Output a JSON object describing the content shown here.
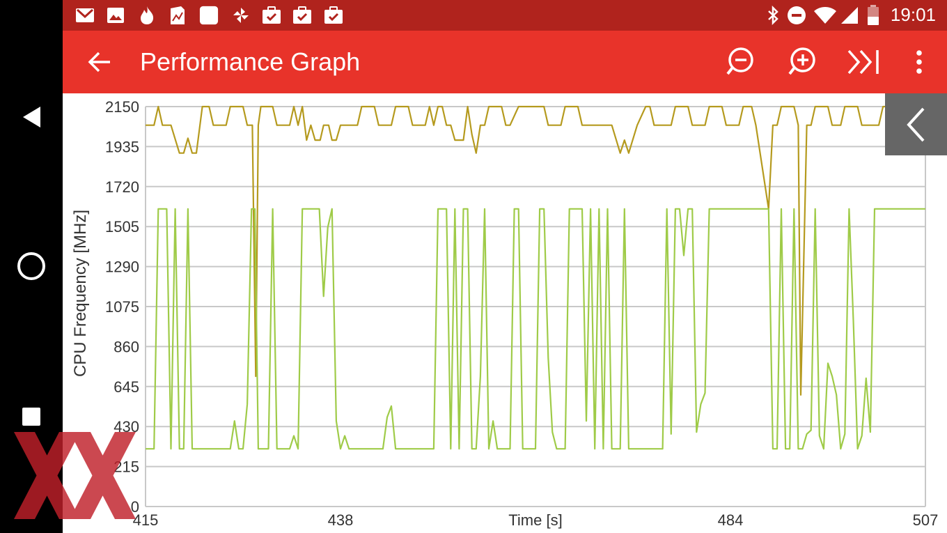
{
  "status_bar": {
    "time": "19:01",
    "left_icons": [
      "gmail-icon",
      "gallery-icon",
      "fire-icon",
      "document-icon",
      "square-app-icon",
      "pinwheel-icon",
      "task-icon",
      "task-icon",
      "task-icon"
    ],
    "right_icons": [
      "bluetooth-icon",
      "do-not-disturb-icon",
      "wifi-icon",
      "cell-signal-icon",
      "battery-icon"
    ]
  },
  "app_bar": {
    "title": "Performance Graph",
    "back_icon": "arrow-left-icon",
    "actions": [
      "zoom-out-icon",
      "zoom-in-icon",
      "jump-to-end-icon",
      "overflow-menu-icon"
    ]
  },
  "nav_bar": {
    "buttons": [
      "back-triangle-icon",
      "home-circle-icon",
      "recents-square-icon"
    ]
  },
  "colors": {
    "status_bar": "#b0231d",
    "app_bar": "#e8332a",
    "series_big": "#b59a1e",
    "series_little": "#9fcb48",
    "grid": "#c8c8c8",
    "watermark": "#c0202a"
  },
  "chart_data": {
    "type": "line",
    "xlabel": "Time [s]",
    "ylabel": "CPU Frequency [MHz]",
    "xlim": [
      415,
      507
    ],
    "ylim": [
      0,
      2150
    ],
    "x_ticks": [
      "415",
      "438",
      "Time [s]",
      "484",
      "507"
    ],
    "y_ticks": [
      "2150",
      "1935",
      "1720",
      "1505",
      "1290",
      "1075",
      "860",
      "645",
      "430",
      "215",
      "0"
    ],
    "grid": true,
    "series": [
      {
        "points": [
          [
            415,
            2050
          ],
          [
            416,
            2050
          ],
          [
            416.5,
            2150
          ],
          [
            417,
            2050
          ],
          [
            418,
            2050
          ],
          [
            419,
            1900
          ],
          [
            419.5,
            1900
          ],
          [
            420,
            1980
          ],
          [
            420.5,
            1900
          ],
          [
            421,
            1900
          ],
          [
            421.7,
            2150
          ],
          [
            422.5,
            2150
          ],
          [
            423,
            2050
          ],
          [
            424.5,
            2050
          ],
          [
            425,
            2150
          ],
          [
            426.5,
            2150
          ],
          [
            427,
            2050
          ],
          [
            427.6,
            2050
          ],
          [
            428,
            700
          ],
          [
            428.3,
            2050
          ],
          [
            428.6,
            2150
          ],
          [
            430,
            2150
          ],
          [
            430.5,
            2050
          ],
          [
            432,
            2050
          ],
          [
            432.5,
            2150
          ],
          [
            433,
            2050
          ],
          [
            433.5,
            2150
          ],
          [
            434,
            1970
          ],
          [
            434.5,
            2050
          ],
          [
            435,
            1970
          ],
          [
            435.6,
            1970
          ],
          [
            436,
            2050
          ],
          [
            436.6,
            2050
          ],
          [
            437,
            1970
          ],
          [
            437.5,
            1970
          ],
          [
            438,
            2050
          ],
          [
            440,
            2050
          ],
          [
            440.5,
            2150
          ],
          [
            442,
            2150
          ],
          [
            442.5,
            2050
          ],
          [
            444,
            2050
          ],
          [
            444.5,
            2150
          ],
          [
            446,
            2150
          ],
          [
            446.5,
            2050
          ],
          [
            448,
            2050
          ],
          [
            448.5,
            2150
          ],
          [
            449,
            2050
          ],
          [
            449.5,
            2150
          ],
          [
            450,
            2150
          ],
          [
            450.5,
            2050
          ],
          [
            451,
            2050
          ],
          [
            451.5,
            1970
          ],
          [
            452.5,
            1970
          ],
          [
            453,
            2150
          ],
          [
            453.5,
            2000
          ],
          [
            454,
            1900
          ],
          [
            454.5,
            2050
          ],
          [
            455,
            2050
          ],
          [
            455.5,
            2150
          ],
          [
            457,
            2150
          ],
          [
            457.5,
            2050
          ],
          [
            458,
            2050
          ],
          [
            459,
            2150
          ],
          [
            462,
            2150
          ],
          [
            462.5,
            2050
          ],
          [
            464,
            2050
          ],
          [
            464.5,
            2150
          ],
          [
            466,
            2150
          ],
          [
            466.5,
            2050
          ],
          [
            470,
            2050
          ],
          [
            471,
            1900
          ],
          [
            471.5,
            1970
          ],
          [
            472,
            1900
          ],
          [
            473,
            2050
          ],
          [
            474,
            2150
          ],
          [
            474.5,
            2150
          ],
          [
            475,
            2050
          ],
          [
            477,
            2050
          ],
          [
            477.5,
            2150
          ],
          [
            479,
            2150
          ],
          [
            479.5,
            2050
          ],
          [
            481,
            2050
          ],
          [
            481.5,
            2150
          ],
          [
            483,
            2150
          ],
          [
            483.5,
            2050
          ],
          [
            485,
            2050
          ],
          [
            485.5,
            2150
          ],
          [
            486.5,
            2150
          ],
          [
            487,
            2050
          ],
          [
            488.5,
            1600
          ],
          [
            489,
            2050
          ],
          [
            489.5,
            2050
          ],
          [
            490,
            2150
          ],
          [
            491.5,
            2150
          ],
          [
            492,
            2050
          ],
          [
            492.3,
            600
          ],
          [
            493,
            2050
          ],
          [
            493.5,
            2050
          ],
          [
            494,
            2150
          ],
          [
            495.5,
            2150
          ],
          [
            496,
            2050
          ],
          [
            497,
            2050
          ],
          [
            497.5,
            2150
          ],
          [
            499,
            2150
          ],
          [
            499.5,
            2050
          ],
          [
            501.5,
            2050
          ],
          [
            502,
            2150
          ],
          [
            507,
            2150
          ]
        ]
      },
      {
        "points": [
          [
            415,
            310
          ],
          [
            416,
            310
          ],
          [
            416.5,
            1600
          ],
          [
            417.5,
            1600
          ],
          [
            418,
            310
          ],
          [
            418.5,
            1600
          ],
          [
            419,
            310
          ],
          [
            419.5,
            310
          ],
          [
            420,
            1600
          ],
          [
            420.5,
            310
          ],
          [
            421,
            310
          ],
          [
            425,
            310
          ],
          [
            425.5,
            460
          ],
          [
            426,
            310
          ],
          [
            426.5,
            310
          ],
          [
            427,
            550
          ],
          [
            427.5,
            1600
          ],
          [
            427.9,
            1600
          ],
          [
            428.3,
            310
          ],
          [
            429.5,
            310
          ],
          [
            430,
            1600
          ],
          [
            430.5,
            310
          ],
          [
            432,
            310
          ],
          [
            432.5,
            380
          ],
          [
            433,
            310
          ],
          [
            433.5,
            1600
          ],
          [
            435.5,
            1600
          ],
          [
            436,
            1130
          ],
          [
            436.5,
            1500
          ],
          [
            437,
            1600
          ],
          [
            437.5,
            460
          ],
          [
            438,
            310
          ],
          [
            438.5,
            380
          ],
          [
            439,
            310
          ],
          [
            443,
            310
          ],
          [
            443.5,
            480
          ],
          [
            444,
            540
          ],
          [
            444.5,
            310
          ],
          [
            449,
            310
          ],
          [
            449.5,
            1600
          ],
          [
            450.5,
            1600
          ],
          [
            451,
            310
          ],
          [
            451.5,
            1600
          ],
          [
            452,
            310
          ],
          [
            452.5,
            1600
          ],
          [
            453,
            1600
          ],
          [
            453.5,
            310
          ],
          [
            454,
            310
          ],
          [
            454.5,
            700
          ],
          [
            455,
            1600
          ],
          [
            455.5,
            310
          ],
          [
            456,
            460
          ],
          [
            456.5,
            310
          ],
          [
            458,
            310
          ],
          [
            458.5,
            1600
          ],
          [
            459,
            1600
          ],
          [
            459.5,
            310
          ],
          [
            461,
            310
          ],
          [
            461.5,
            1600
          ],
          [
            462,
            1600
          ],
          [
            462.5,
            800
          ],
          [
            463,
            400
          ],
          [
            463.5,
            310
          ],
          [
            464.5,
            310
          ],
          [
            465,
            1600
          ],
          [
            466.5,
            1600
          ],
          [
            467,
            460
          ],
          [
            467.5,
            1600
          ],
          [
            468,
            310
          ],
          [
            468.5,
            1600
          ],
          [
            469,
            310
          ],
          [
            469.5,
            1600
          ],
          [
            470,
            310
          ],
          [
            471,
            310
          ],
          [
            471.5,
            1600
          ],
          [
            472,
            310
          ],
          [
            476,
            310
          ],
          [
            476.5,
            1600
          ],
          [
            477,
            390
          ],
          [
            477.5,
            1600
          ],
          [
            478,
            1600
          ],
          [
            478.5,
            1350
          ],
          [
            479,
            1600
          ],
          [
            479.5,
            1600
          ],
          [
            480,
            400
          ],
          [
            480.5,
            550
          ],
          [
            481,
            610
          ],
          [
            481.5,
            1600
          ],
          [
            488,
            1600
          ],
          [
            488.5,
            1600
          ],
          [
            489,
            310
          ],
          [
            489.5,
            310
          ],
          [
            490,
            1600
          ],
          [
            490.5,
            310
          ],
          [
            491,
            310
          ],
          [
            491.5,
            1600
          ],
          [
            492,
            310
          ],
          [
            492.5,
            310
          ],
          [
            493,
            390
          ],
          [
            493.5,
            410
          ],
          [
            494,
            1600
          ],
          [
            494.5,
            380
          ],
          [
            495,
            310
          ],
          [
            495.5,
            770
          ],
          [
            496,
            700
          ],
          [
            496.5,
            600
          ],
          [
            497,
            310
          ],
          [
            497.5,
            390
          ],
          [
            498,
            1600
          ],
          [
            498.5,
            1000
          ],
          [
            499,
            310
          ],
          [
            499.5,
            380
          ],
          [
            500,
            690
          ],
          [
            500.5,
            400
          ],
          [
            501,
            1600
          ],
          [
            507,
            1600
          ]
        ]
      }
    ]
  }
}
